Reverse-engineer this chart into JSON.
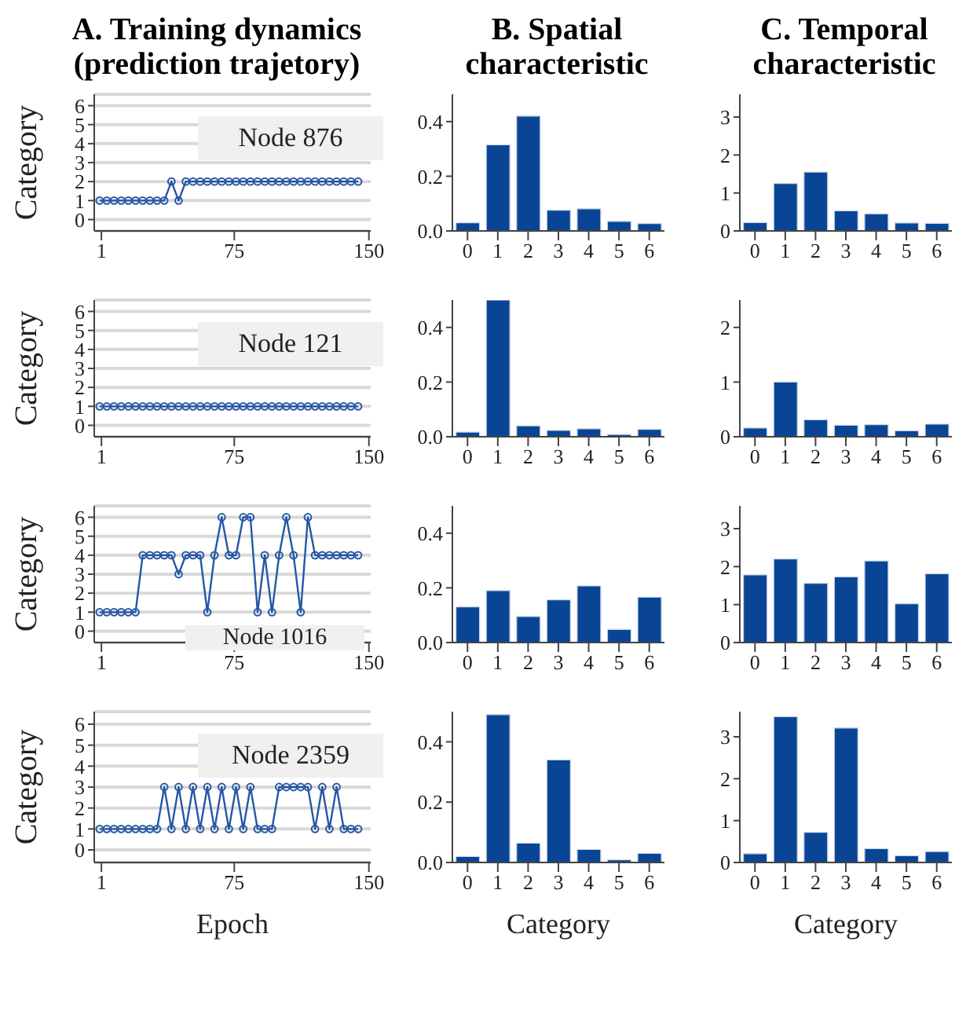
{
  "chart_data": [
    {
      "type": "line",
      "title": "A. Training dynamics (prediction trajetory)",
      "ylabel": "Category",
      "annotations": [
        "Node 876"
      ],
      "color": "#2457a6",
      "marker": "circle",
      "grid": "y",
      "xlim": [
        -3,
        151
      ],
      "xticks": [
        1,
        75,
        150
      ],
      "ylim": [
        -0.6,
        6.6
      ],
      "yticks": [
        0,
        1,
        2,
        3,
        4,
        5,
        6
      ],
      "x": [
        0,
        4,
        8,
        12,
        16,
        20,
        24,
        28,
        32,
        36,
        40,
        44,
        48,
        52,
        56,
        60,
        64,
        68,
        72,
        76,
        80,
        84,
        88,
        92,
        96,
        100,
        104,
        108,
        112,
        116,
        120,
        124,
        128,
        132,
        136,
        140,
        144
      ],
      "values": [
        1,
        1,
        1,
        1,
        1,
        1,
        1,
        1,
        1,
        1,
        2,
        1,
        2,
        2,
        2,
        2,
        2,
        2,
        2,
        2,
        2,
        2,
        2,
        2,
        2,
        2,
        2,
        2,
        2,
        2,
        2,
        2,
        2,
        2,
        2,
        2,
        2
      ]
    },
    {
      "type": "bar",
      "title": "B. Spatial characteristic",
      "categories": [
        "0",
        "1",
        "2",
        "3",
        "4",
        "5",
        "6"
      ],
      "color": "#0a4595",
      "ylim": [
        0,
        0.5
      ],
      "yticks": [
        {
          "value": 0,
          "label": "0.0"
        },
        {
          "value": 0.2,
          "label": "0.2"
        },
        {
          "value": 0.4,
          "label": "0.4"
        }
      ],
      "values": [
        0.03,
        0.315,
        0.42,
        0.076,
        0.081,
        0.035,
        0.027
      ]
    },
    {
      "type": "bar",
      "title": "C. Temporal characteristic",
      "categories": [
        "0",
        "1",
        "2",
        "3",
        "4",
        "5",
        "6"
      ],
      "color": "#0a4595",
      "ylim": [
        0,
        3.6
      ],
      "yticks": [
        0,
        1,
        2,
        3
      ],
      "values": [
        0.22,
        1.25,
        1.55,
        0.53,
        0.45,
        0.21,
        0.2
      ]
    },
    {
      "type": "line",
      "ylabel": "Category",
      "annotations": [
        "Node 121"
      ],
      "color": "#2457a6",
      "marker": "circle",
      "grid": "y",
      "xlim": [
        -3,
        151
      ],
      "xticks": [
        1,
        75,
        150
      ],
      "ylim": [
        -0.6,
        6.6
      ],
      "yticks": [
        0,
        1,
        2,
        3,
        4,
        5,
        6
      ],
      "x": [
        0,
        4,
        8,
        12,
        16,
        20,
        24,
        28,
        32,
        36,
        40,
        44,
        48,
        52,
        56,
        60,
        64,
        68,
        72,
        76,
        80,
        84,
        88,
        92,
        96,
        100,
        104,
        108,
        112,
        116,
        120,
        124,
        128,
        132,
        136,
        140,
        144
      ],
      "values": [
        1,
        1,
        1,
        1,
        1,
        1,
        1,
        1,
        1,
        1,
        1,
        1,
        1,
        1,
        1,
        1,
        1,
        1,
        1,
        1,
        1,
        1,
        1,
        1,
        1,
        1,
        1,
        1,
        1,
        1,
        1,
        1,
        1,
        1,
        1,
        1,
        1
      ]
    },
    {
      "type": "bar",
      "categories": [
        "0",
        "1",
        "2",
        "3",
        "4",
        "5",
        "6"
      ],
      "color": "#0a4595",
      "ylim": [
        0,
        0.5
      ],
      "yticks": [
        {
          "value": 0,
          "label": "0.0"
        },
        {
          "value": 0.2,
          "label": "0.2"
        },
        {
          "value": 0.4,
          "label": "0.4"
        }
      ],
      "values": [
        0.017,
        0.5,
        0.04,
        0.023,
        0.029,
        0.008,
        0.027
      ]
    },
    {
      "type": "bar",
      "categories": [
        "0",
        "1",
        "2",
        "3",
        "4",
        "5",
        "6"
      ],
      "color": "#0a4595",
      "ylim": [
        0,
        2.5
      ],
      "yticks": [
        0,
        1,
        2
      ],
      "values": [
        0.16,
        1.0,
        0.31,
        0.21,
        0.22,
        0.11,
        0.23
      ]
    },
    {
      "type": "line",
      "ylabel": "Category",
      "annotations": [
        "Node 1016"
      ],
      "color": "#2457a6",
      "marker": "circle",
      "grid": "y",
      "xlim": [
        -3,
        151
      ],
      "xticks": [
        1,
        75,
        150
      ],
      "ylim": [
        -0.6,
        6.6
      ],
      "yticks": [
        0,
        1,
        2,
        3,
        4,
        5,
        6
      ],
      "x": [
        0,
        4,
        8,
        12,
        16,
        20,
        24,
        28,
        32,
        36,
        40,
        44,
        48,
        52,
        56,
        60,
        64,
        68,
        72,
        76,
        80,
        84,
        88,
        92,
        96,
        100,
        104,
        108,
        112,
        116,
        120,
        124,
        128,
        132,
        136,
        140,
        144
      ],
      "values": [
        1,
        1,
        1,
        1,
        1,
        1,
        4,
        4,
        4,
        4,
        4,
        3,
        4,
        4,
        4,
        1,
        4,
        6,
        4,
        4,
        6,
        6,
        1,
        4,
        1,
        4,
        6,
        4,
        1,
        6,
        4,
        4,
        4,
        4,
        4,
        4,
        4
      ]
    },
    {
      "type": "bar",
      "categories": [
        "0",
        "1",
        "2",
        "3",
        "4",
        "5",
        "6"
      ],
      "color": "#0a4595",
      "ylim": [
        0,
        0.5
      ],
      "yticks": [
        {
          "value": 0,
          "label": "0.0"
        },
        {
          "value": 0.2,
          "label": "0.2"
        },
        {
          "value": 0.4,
          "label": "0.4"
        }
      ],
      "values": [
        0.13,
        0.19,
        0.095,
        0.156,
        0.207,
        0.048,
        0.166
      ]
    },
    {
      "type": "bar",
      "categories": [
        "0",
        "1",
        "2",
        "3",
        "4",
        "5",
        "6"
      ],
      "color": "#0a4595",
      "ylim": [
        0,
        3.6
      ],
      "yticks": [
        0,
        1,
        2,
        3
      ],
      "values": [
        1.78,
        2.2,
        1.56,
        1.73,
        2.15,
        1.02,
        1.81
      ]
    },
    {
      "type": "line",
      "xlabel": "Epoch",
      "ylabel": "Category",
      "annotations": [
        "Node 2359"
      ],
      "color": "#2457a6",
      "marker": "circle",
      "grid": "y",
      "xlim": [
        -3,
        151
      ],
      "xticks": [
        1,
        75,
        150
      ],
      "ylim": [
        -0.6,
        6.6
      ],
      "yticks": [
        0,
        1,
        2,
        3,
        4,
        5,
        6
      ],
      "x": [
        0,
        4,
        8,
        12,
        16,
        20,
        24,
        28,
        32,
        36,
        40,
        44,
        48,
        52,
        56,
        60,
        64,
        68,
        72,
        76,
        80,
        84,
        88,
        92,
        96,
        100,
        104,
        108,
        112,
        116,
        120,
        124,
        128,
        132,
        136,
        140,
        144
      ],
      "values": [
        1,
        1,
        1,
        1,
        1,
        1,
        1,
        1,
        1,
        3,
        1,
        3,
        1,
        3,
        1,
        3,
        1,
        3,
        1,
        3,
        1,
        3,
        1,
        1,
        1,
        3,
        3,
        3,
        3,
        3,
        1,
        3,
        1,
        3,
        1,
        1,
        1
      ]
    },
    {
      "type": "bar",
      "xlabel": "Category",
      "categories": [
        "0",
        "1",
        "2",
        "3",
        "4",
        "5",
        "6"
      ],
      "color": "#0a4595",
      "ylim": [
        0,
        0.5
      ],
      "yticks": [
        {
          "value": 0,
          "label": "0.0"
        },
        {
          "value": 0.2,
          "label": "0.2"
        },
        {
          "value": 0.4,
          "label": "0.4"
        }
      ],
      "values": [
        0.02,
        0.49,
        0.064,
        0.34,
        0.043,
        0.009,
        0.03
      ]
    },
    {
      "type": "bar",
      "xlabel": "Category",
      "categories": [
        "0",
        "1",
        "2",
        "3",
        "4",
        "5",
        "6"
      ],
      "color": "#0a4595",
      "ylim": [
        0,
        3.6
      ],
      "yticks": [
        0,
        1,
        2,
        3
      ],
      "values": [
        0.21,
        3.48,
        0.72,
        3.21,
        0.33,
        0.16,
        0.26
      ]
    }
  ]
}
